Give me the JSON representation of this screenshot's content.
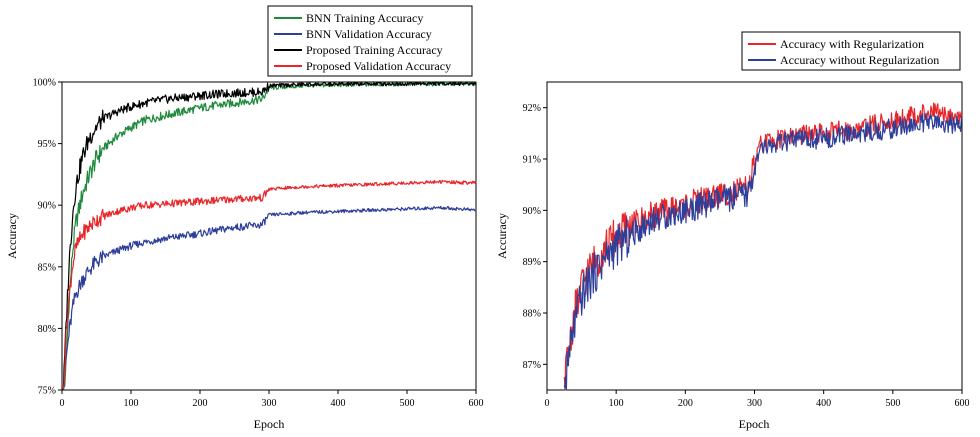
{
  "chart_data": [
    {
      "type": "line",
      "title": "",
      "xlabel": "Epoch",
      "ylabel": "Accuracy",
      "xlim": [
        0,
        600
      ],
      "ylim": [
        75,
        100
      ],
      "x_ticks": [
        0,
        100,
        200,
        300,
        400,
        500,
        600
      ],
      "y_ticks": [
        75,
        80,
        85,
        90,
        95,
        100
      ],
      "y_tick_labels": [
        "75%",
        "80%",
        "85%",
        "90%",
        "95%",
        "100%"
      ],
      "legend_position": "top-right",
      "grid": false,
      "series": [
        {
          "name": "BNN Training Accuracy",
          "color": "#1f8a3c",
          "x": [
            2,
            5,
            10,
            15,
            20,
            30,
            40,
            50,
            60,
            80,
            100,
            120,
            150,
            200,
            250,
            290,
            300,
            350,
            400,
            450,
            500,
            550,
            600
          ],
          "y": [
            75.0,
            76.0,
            82.0,
            86.0,
            88.5,
            91.0,
            92.5,
            93.8,
            94.6,
            95.6,
            96.3,
            96.9,
            97.3,
            97.9,
            98.3,
            98.6,
            99.5,
            99.7,
            99.75,
            99.8,
            99.82,
            99.85,
            99.85
          ]
        },
        {
          "name": "BNN Validation Accuracy",
          "color": "#2e3f9a",
          "x": [
            2,
            5,
            10,
            15,
            20,
            30,
            40,
            50,
            60,
            80,
            100,
            120,
            150,
            200,
            250,
            290,
            300,
            350,
            400,
            450,
            500,
            550,
            600
          ],
          "y": [
            75.0,
            77.0,
            79.5,
            81.5,
            82.8,
            84.0,
            84.8,
            85.4,
            85.8,
            86.3,
            86.7,
            87.0,
            87.3,
            87.7,
            88.2,
            88.4,
            89.2,
            89.4,
            89.5,
            89.6,
            89.7,
            89.8,
            89.6
          ]
        },
        {
          "name": "Proposed Training Accuracy",
          "color": "#000000",
          "x": [
            2,
            5,
            10,
            15,
            20,
            30,
            40,
            50,
            60,
            80,
            100,
            120,
            150,
            200,
            250,
            290,
            300,
            350,
            400,
            450,
            500,
            550,
            600
          ],
          "y": [
            75.0,
            79.0,
            85.0,
            89.0,
            91.5,
            94.0,
            95.5,
            96.4,
            97.0,
            97.6,
            98.0,
            98.3,
            98.6,
            98.9,
            99.1,
            99.2,
            99.7,
            99.8,
            99.82,
            99.85,
            99.87,
            99.88,
            99.88
          ]
        },
        {
          "name": "Proposed Validation Accuracy",
          "color": "#e8262a",
          "x": [
            2,
            5,
            10,
            15,
            20,
            30,
            40,
            50,
            60,
            80,
            100,
            120,
            150,
            200,
            250,
            290,
            300,
            350,
            400,
            450,
            500,
            550,
            600
          ],
          "y": [
            75.0,
            78.5,
            82.5,
            85.0,
            86.5,
            87.7,
            88.3,
            88.8,
            89.1,
            89.5,
            89.8,
            90.0,
            90.1,
            90.3,
            90.5,
            90.6,
            91.3,
            91.5,
            91.6,
            91.7,
            91.8,
            91.9,
            91.8
          ]
        }
      ]
    },
    {
      "type": "line",
      "title": "",
      "xlabel": "Epoch",
      "ylabel": "Accuracy",
      "xlim": [
        0,
        600
      ],
      "ylim": [
        86.5,
        92.5
      ],
      "x_ticks": [
        0,
        100,
        200,
        300,
        400,
        500,
        600
      ],
      "y_ticks": [
        87,
        88,
        89,
        90,
        91,
        92
      ],
      "y_tick_labels": [
        "87%",
        "88%",
        "89%",
        "90%",
        "91%",
        "92%"
      ],
      "legend_position": "top-right",
      "grid": false,
      "series": [
        {
          "name": "Accuracy with Regularization",
          "color": "#e8262a",
          "x": [
            25,
            30,
            40,
            50,
            60,
            80,
            100,
            120,
            150,
            200,
            250,
            290,
            300,
            310,
            350,
            400,
            450,
            500,
            550,
            600
          ],
          "y": [
            86.5,
            87.2,
            88.0,
            88.5,
            88.8,
            89.2,
            89.5,
            89.7,
            89.9,
            90.1,
            90.3,
            90.4,
            90.9,
            91.3,
            91.45,
            91.5,
            91.6,
            91.75,
            91.9,
            91.85
          ]
        },
        {
          "name": "Accuracy without Regularization",
          "color": "#2e3f9a",
          "x": [
            25,
            30,
            40,
            50,
            60,
            80,
            100,
            120,
            150,
            200,
            250,
            290,
            300,
            310,
            350,
            400,
            450,
            500,
            550,
            600
          ],
          "y": [
            86.5,
            87.0,
            87.8,
            88.3,
            88.6,
            89.0,
            89.3,
            89.5,
            89.8,
            90.0,
            90.2,
            90.3,
            90.8,
            91.2,
            91.35,
            91.4,
            91.5,
            91.6,
            91.7,
            91.65
          ]
        }
      ]
    }
  ]
}
